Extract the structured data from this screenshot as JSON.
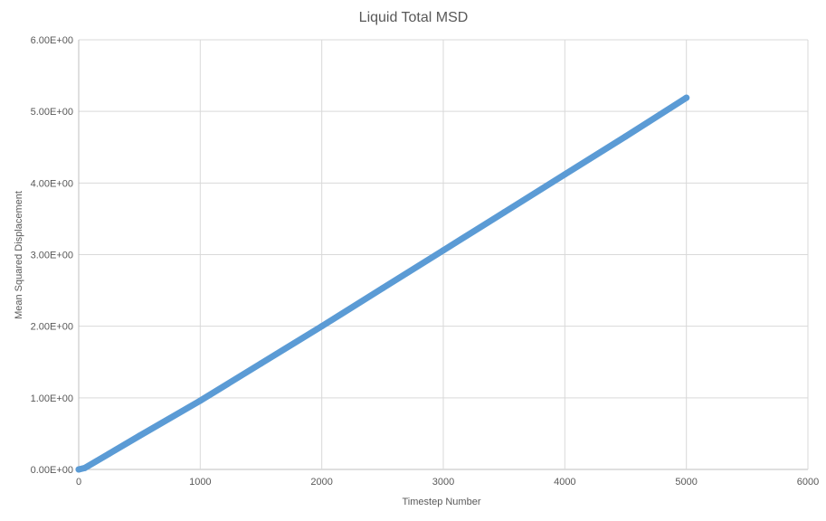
{
  "chart_data": {
    "type": "scatter",
    "title": "Liquid Total MSD",
    "xlabel": "Timestep Number",
    "ylabel": "Mean Squared Displacement",
    "xlim": [
      0,
      6000
    ],
    "ylim": [
      0,
      6
    ],
    "x_ticks": [
      "0",
      "1000",
      "2000",
      "3000",
      "4000",
      "5000",
      "6000"
    ],
    "y_ticks": [
      "0.00E+00",
      "1.00E+00",
      "2.00E+00",
      "3.00E+00",
      "4.00E+00",
      "5.00E+00",
      "6.00E+00"
    ],
    "grid": true,
    "legend": "none",
    "series": [
      {
        "color": "#5b9bd5",
        "x": [
          0,
          50,
          250,
          500,
          1000,
          1500,
          2000,
          2500,
          3000,
          3500,
          4000,
          4500,
          5000
        ],
        "y": [
          0,
          0.02,
          0.22,
          0.47,
          0.96,
          1.48,
          2.0,
          2.53,
          3.06,
          3.59,
          4.12,
          4.65,
          5.19
        ]
      }
    ]
  }
}
